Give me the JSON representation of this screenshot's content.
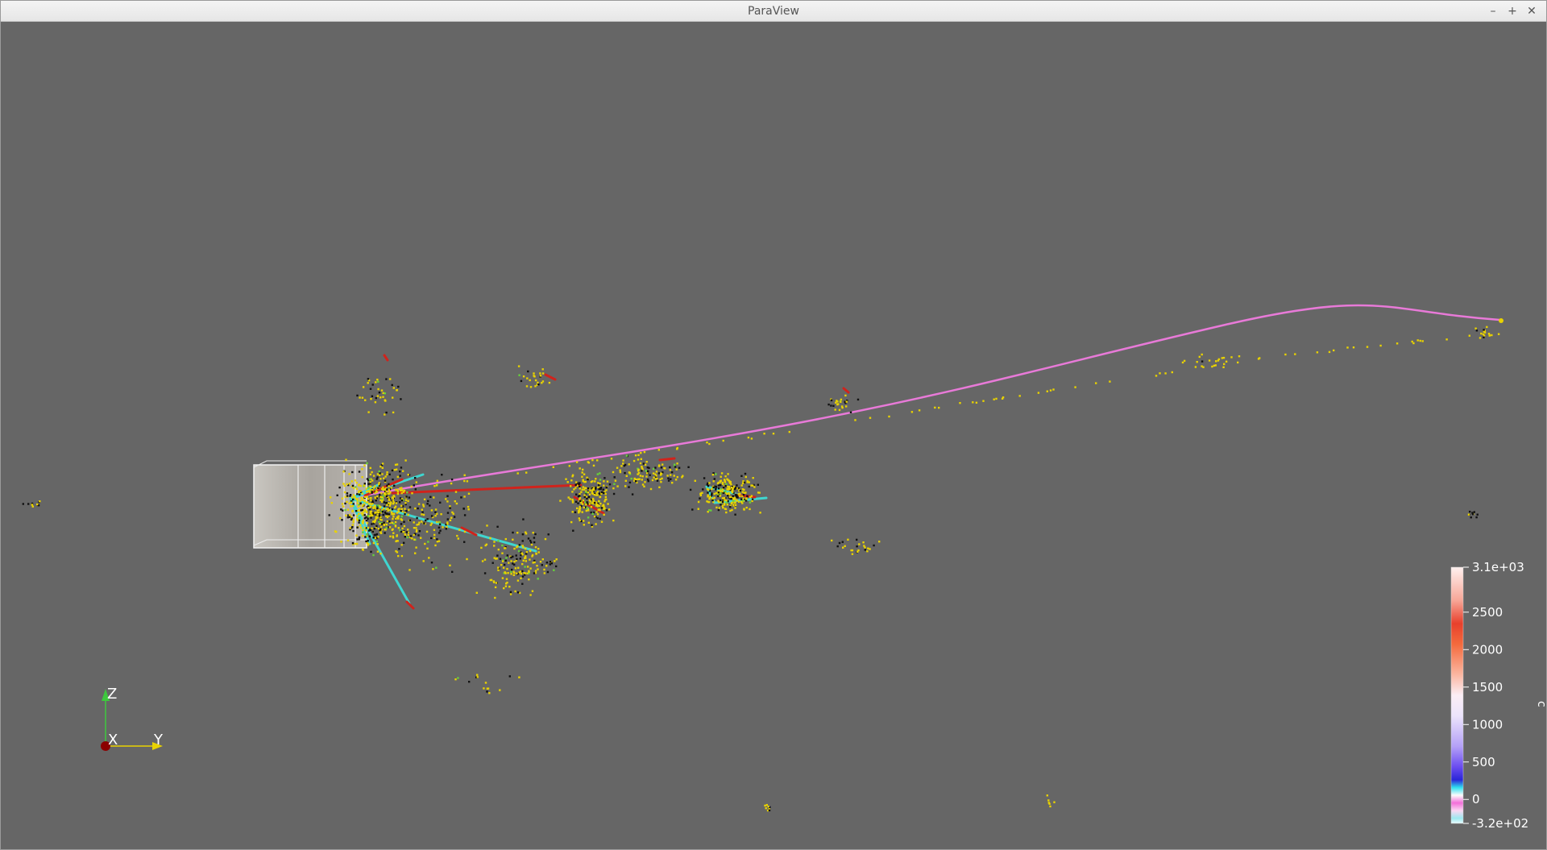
{
  "window": {
    "title": "ParaView",
    "controls": {
      "minimize": "–",
      "maximize": "+",
      "close": "✕"
    }
  },
  "view": {
    "background_color": "#666666",
    "orientation_axes": {
      "z_label": "Z",
      "x_label": "X",
      "y_label": "Y"
    },
    "color_legend": {
      "title": "c",
      "ticks": [
        {
          "value": 3100,
          "label": "3.1e+03"
        },
        {
          "value": 2500,
          "label": "2500"
        },
        {
          "value": 2000,
          "label": "2000"
        },
        {
          "value": 1500,
          "label": "1500"
        },
        {
          "value": 1000,
          "label": "1000"
        },
        {
          "value": 500,
          "label": "500"
        },
        {
          "value": 0,
          "label": "0"
        },
        {
          "value": -320,
          "label": "-3.2e+02"
        }
      ],
      "range": [
        -320,
        3100
      ]
    },
    "colors": {
      "track_main": "#e87ad8",
      "track_cyan": "#3fd6d0",
      "track_red": "#d0231c",
      "hits_yellow": "#e8d200",
      "hits_black": "#111111",
      "hits_green": "#66d13a"
    }
  }
}
